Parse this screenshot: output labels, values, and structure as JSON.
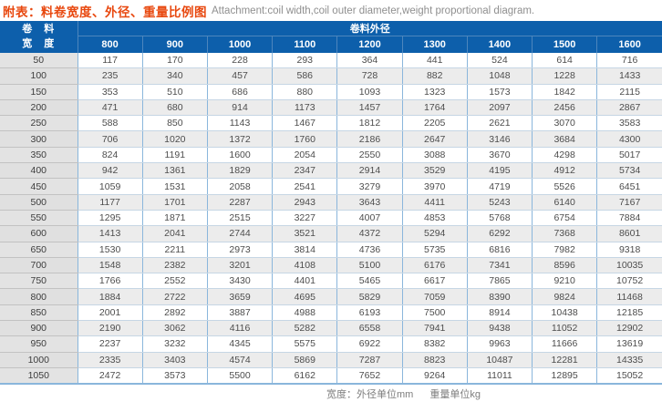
{
  "title": {
    "label_cn": "附表：",
    "text_cn": "料卷宽度、外径、重量比例图",
    "text_en": "Attachment:coil width,coil outer diameter,weight proportional diagram."
  },
  "colors": {
    "header_blue": "#0d5fab",
    "title_orange": "#e8480f",
    "row_alt_gray": "#ececec",
    "label_gray": "#e3e3e3",
    "border_blue": "#8ab6dc"
  },
  "table": {
    "corner_line1": "卷　料",
    "corner_line2": "宽　度",
    "span_header": "卷料外径",
    "columns": [
      "800",
      "900",
      "1000",
      "1100",
      "1200",
      "1300",
      "1400",
      "1500",
      "1600"
    ],
    "rows": [
      {
        "width": "50",
        "values": [
          "117",
          "170",
          "228",
          "293",
          "364",
          "441",
          "524",
          "614",
          "716"
        ]
      },
      {
        "width": "100",
        "values": [
          "235",
          "340",
          "457",
          "586",
          "728",
          "882",
          "1048",
          "1228",
          "1433"
        ]
      },
      {
        "width": "150",
        "values": [
          "353",
          "510",
          "686",
          "880",
          "1093",
          "1323",
          "1573",
          "1842",
          "2115"
        ]
      },
      {
        "width": "200",
        "values": [
          "471",
          "680",
          "914",
          "1173",
          "1457",
          "1764",
          "2097",
          "2456",
          "2867"
        ]
      },
      {
        "width": "250",
        "values": [
          "588",
          "850",
          "1143",
          "1467",
          "1812",
          "2205",
          "2621",
          "3070",
          "3583"
        ]
      },
      {
        "width": "300",
        "values": [
          "706",
          "1020",
          "1372",
          "1760",
          "2186",
          "2647",
          "3146",
          "3684",
          "4300"
        ]
      },
      {
        "width": "350",
        "values": [
          "824",
          "1191",
          "1600",
          "2054",
          "2550",
          "3088",
          "3670",
          "4298",
          "5017"
        ]
      },
      {
        "width": "400",
        "values": [
          "942",
          "1361",
          "1829",
          "2347",
          "2914",
          "3529",
          "4195",
          "4912",
          "5734"
        ]
      },
      {
        "width": "450",
        "values": [
          "1059",
          "1531",
          "2058",
          "2541",
          "3279",
          "3970",
          "4719",
          "5526",
          "6451"
        ]
      },
      {
        "width": "500",
        "values": [
          "1177",
          "1701",
          "2287",
          "2943",
          "3643",
          "4411",
          "5243",
          "6140",
          "7167"
        ]
      },
      {
        "width": "550",
        "values": [
          "1295",
          "1871",
          "2515",
          "3227",
          "4007",
          "4853",
          "5768",
          "6754",
          "7884"
        ]
      },
      {
        "width": "600",
        "values": [
          "1413",
          "2041",
          "2744",
          "3521",
          "4372",
          "5294",
          "6292",
          "7368",
          "8601"
        ]
      },
      {
        "width": "650",
        "values": [
          "1530",
          "2211",
          "2973",
          "3814",
          "4736",
          "5735",
          "6816",
          "7982",
          "9318"
        ]
      },
      {
        "width": "700",
        "values": [
          "1548",
          "2382",
          "3201",
          "4108",
          "5100",
          "6176",
          "7341",
          "8596",
          "10035"
        ]
      },
      {
        "width": "750",
        "values": [
          "1766",
          "2552",
          "3430",
          "4401",
          "5465",
          "6617",
          "7865",
          "9210",
          "10752"
        ]
      },
      {
        "width": "800",
        "values": [
          "1884",
          "2722",
          "3659",
          "4695",
          "5829",
          "7059",
          "8390",
          "9824",
          "11468"
        ]
      },
      {
        "width": "850",
        "values": [
          "2001",
          "2892",
          "3887",
          "4988",
          "6193",
          "7500",
          "8914",
          "10438",
          "12185"
        ]
      },
      {
        "width": "900",
        "values": [
          "2190",
          "3062",
          "4116",
          "5282",
          "6558",
          "7941",
          "9438",
          "11052",
          "12902"
        ]
      },
      {
        "width": "950",
        "values": [
          "2237",
          "3232",
          "4345",
          "5575",
          "6922",
          "8382",
          "9963",
          "11666",
          "13619"
        ]
      },
      {
        "width": "1000",
        "values": [
          "2335",
          "3403",
          "4574",
          "5869",
          "7287",
          "8823",
          "10487",
          "12281",
          "14335"
        ]
      },
      {
        "width": "1050",
        "values": [
          "2472",
          "3573",
          "5500",
          "6162",
          "7652",
          "9264",
          "11011",
          "12895",
          "15052"
        ]
      }
    ]
  },
  "footer": {
    "note1": "宽度：外径单位mm",
    "note2": "重量单位kg"
  }
}
